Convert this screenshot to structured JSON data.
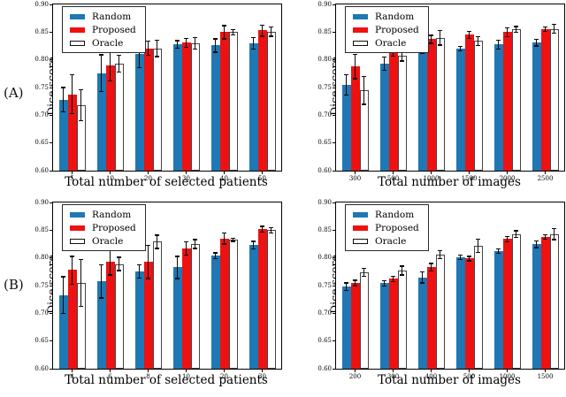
{
  "figure": {
    "rows": [
      {
        "label": "(A)"
      },
      {
        "label": "(B)"
      }
    ]
  },
  "colors": {
    "random": "#1f77b4",
    "proposed": "#ee1111",
    "oracle_fill": "#ffffff",
    "oracle_edge": "#444444",
    "axis": "#000000",
    "error_bar": "#0a0a0a"
  },
  "chart_data": [
    {
      "type": "bar",
      "title": "",
      "xlabel": "Total number of selected patients",
      "ylabel": "Dice score",
      "categories": [
        "5",
        "10",
        "20",
        "30",
        "40",
        "50"
      ],
      "ylim": [
        0.6,
        0.9
      ],
      "yticks": [
        0.6,
        0.65,
        0.7,
        0.75,
        0.8,
        0.85,
        0.9
      ],
      "grid": false,
      "legend_position": "upper left",
      "series": [
        {
          "name": "Random",
          "color": "#1f77b4",
          "values": [
            0.728,
            0.776,
            0.81,
            0.828,
            0.826,
            0.83
          ],
          "errors": [
            0.022,
            0.033,
            0.024,
            0.007,
            0.012,
            0.01
          ]
        },
        {
          "name": "Proposed",
          "color": "#ee1111",
          "values": [
            0.738,
            0.79,
            0.821,
            0.831,
            0.85,
            0.853
          ],
          "errors": [
            0.035,
            0.028,
            0.013,
            0.008,
            0.012,
            0.01
          ]
        },
        {
          "name": "Oracle",
          "color": "#ffffff",
          "edge": "#444444",
          "values": [
            0.718,
            0.793,
            0.821,
            0.83,
            0.85,
            0.851
          ],
          "errors": [
            0.028,
            0.015,
            0.015,
            0.01,
            0.005,
            0.008
          ]
        }
      ]
    },
    {
      "type": "bar",
      "title": "",
      "xlabel": "Total number of images",
      "ylabel": "Dice score",
      "categories": [
        "300",
        "500",
        "1000",
        "1500",
        "2000",
        "2500"
      ],
      "ylim": [
        0.6,
        0.9
      ],
      "yticks": [
        0.6,
        0.65,
        0.7,
        0.75,
        0.8,
        0.85,
        0.9
      ],
      "grid": false,
      "legend_position": "upper left",
      "series": [
        {
          "name": "Random",
          "color": "#1f77b4",
          "values": [
            0.755,
            0.793,
            0.817,
            0.82,
            0.828,
            0.831
          ],
          "errors": [
            0.018,
            0.012,
            0.005,
            0.004,
            0.008,
            0.006
          ]
        },
        {
          "name": "Proposed",
          "color": "#ee1111",
          "values": [
            0.788,
            0.817,
            0.837,
            0.845,
            0.85,
            0.855
          ],
          "errors": [
            0.022,
            0.01,
            0.007,
            0.006,
            0.008,
            0.004
          ]
        },
        {
          "name": "Oracle",
          "color": "#ffffff",
          "edge": "#444444",
          "values": [
            0.745,
            0.808,
            0.84,
            0.834,
            0.855,
            0.856
          ],
          "errors": [
            0.025,
            0.01,
            0.013,
            0.008,
            0.005,
            0.008
          ]
        }
      ]
    },
    {
      "type": "bar",
      "title": "",
      "xlabel": "Total number of selected patients",
      "ylabel": "Dice score",
      "categories": [
        "4",
        "6",
        "8",
        "10",
        "20",
        "30"
      ],
      "ylim": [
        0.6,
        0.9
      ],
      "yticks": [
        0.6,
        0.65,
        0.7,
        0.75,
        0.8,
        0.85,
        0.9
      ],
      "grid": false,
      "legend_position": "upper left",
      "series": [
        {
          "name": "Random",
          "color": "#1f77b4",
          "values": [
            0.733,
            0.758,
            0.776,
            0.783,
            0.804,
            0.823
          ],
          "errors": [
            0.033,
            0.03,
            0.012,
            0.02,
            0.005,
            0.007
          ]
        },
        {
          "name": "Proposed",
          "color": "#ee1111",
          "values": [
            0.778,
            0.793,
            0.793,
            0.817,
            0.835,
            0.852
          ],
          "errors": [
            0.025,
            0.024,
            0.03,
            0.012,
            0.01,
            0.005
          ]
        },
        {
          "name": "Oracle",
          "color": "#ffffff",
          "edge": "#444444",
          "values": [
            0.755,
            0.789,
            0.829,
            0.825,
            0.833,
            0.85
          ],
          "errors": [
            0.042,
            0.012,
            0.012,
            0.008,
            0.003,
            0.005
          ]
        }
      ]
    },
    {
      "type": "bar",
      "title": "",
      "xlabel": "Total number of images",
      "ylabel": "Dice score",
      "categories": [
        "200",
        "300",
        "400",
        "500",
        "1000",
        "1500"
      ],
      "ylim": [
        0.6,
        0.9
      ],
      "yticks": [
        0.6,
        0.65,
        0.7,
        0.75,
        0.8,
        0.85,
        0.9
      ],
      "grid": false,
      "legend_position": "upper left",
      "series": [
        {
          "name": "Random",
          "color": "#1f77b4",
          "values": [
            0.748,
            0.754,
            0.765,
            0.801,
            0.812,
            0.825
          ],
          "errors": [
            0.007,
            0.005,
            0.01,
            0.004,
            0.004,
            0.006
          ]
        },
        {
          "name": "Proposed",
          "color": "#ee1111",
          "values": [
            0.755,
            0.762,
            0.783,
            0.799,
            0.834,
            0.838
          ],
          "errors": [
            0.005,
            0.005,
            0.007,
            0.004,
            0.005,
            0.004
          ]
        },
        {
          "name": "Oracle",
          "color": "#ffffff",
          "edge": "#444444",
          "values": [
            0.774,
            0.777,
            0.806,
            0.822,
            0.843,
            0.843
          ],
          "errors": [
            0.007,
            0.008,
            0.007,
            0.012,
            0.006,
            0.01
          ]
        }
      ]
    }
  ]
}
